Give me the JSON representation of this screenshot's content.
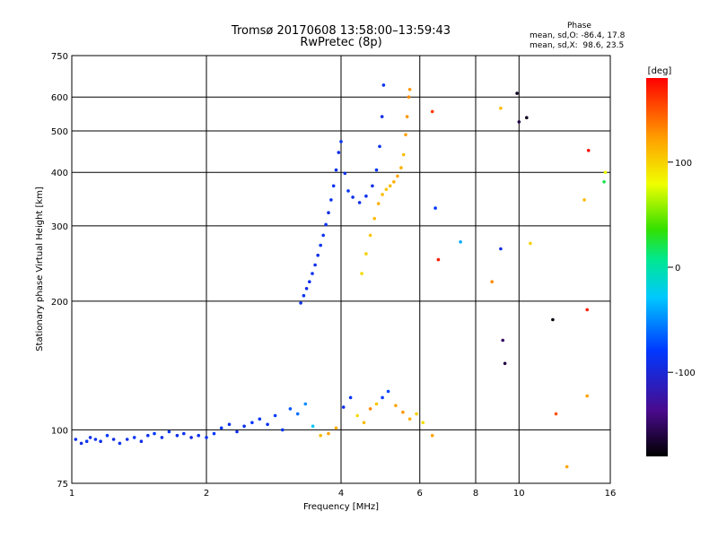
{
  "chart_data": {
    "type": "scatter",
    "title": "Tromsø 20170608 13:58:00–13:59:43",
    "subtitle": "RwPretec (8p)",
    "phase_title": "Phase",
    "phase_o": "mean, sd,O: -86.4, 17.8",
    "phase_x": "mean, sd,X:  98.6, 23.5",
    "xlabel": "Frequency [MHz]",
    "ylabel": "Stationary phase Virtual Height [km]",
    "xscale": "log",
    "yscale": "log",
    "xlim": [
      1,
      16
    ],
    "ylim": [
      75,
      750
    ],
    "xticks": [
      1,
      2,
      4,
      6,
      8,
      10,
      16
    ],
    "xtick_labels": [
      "1",
      "2",
      "4",
      "6",
      "8",
      "10",
      "16"
    ],
    "yticks": [
      75,
      100,
      200,
      300,
      400,
      500,
      600,
      750
    ],
    "ytick_labels": [
      "75",
      "100",
      "200",
      "300",
      "400",
      "500",
      "600",
      "750"
    ],
    "colorbar": {
      "label": "[deg]",
      "range": [
        -180,
        180
      ],
      "ticks": [
        -100,
        0,
        100
      ],
      "tick_labels": [
        "-100",
        "0",
        "100"
      ]
    },
    "grid": true,
    "series": [
      {
        "points": [
          [
            1.02,
            95,
            -90
          ],
          [
            1.05,
            93,
            -95
          ],
          [
            1.08,
            94,
            -88
          ],
          [
            1.1,
            96,
            -92
          ],
          [
            1.13,
            95,
            -85
          ],
          [
            1.16,
            94,
            -90
          ],
          [
            1.2,
            97,
            -80
          ],
          [
            1.24,
            95,
            -92
          ],
          [
            1.28,
            93,
            -88
          ],
          [
            1.33,
            95,
            -90
          ],
          [
            1.38,
            96,
            -85
          ],
          [
            1.43,
            94,
            -92
          ],
          [
            1.48,
            97,
            -88
          ],
          [
            1.53,
            98,
            -80
          ],
          [
            1.59,
            96,
            -90
          ],
          [
            1.65,
            99,
            -85
          ],
          [
            1.72,
            97,
            -92
          ],
          [
            1.78,
            98,
            -88
          ],
          [
            1.85,
            96,
            -95
          ],
          [
            1.92,
            97,
            -90
          ],
          [
            2.0,
            96,
            -88
          ],
          [
            2.08,
            98,
            -82
          ],
          [
            2.16,
            101,
            -85
          ],
          [
            2.25,
            103,
            -90
          ],
          [
            2.34,
            99,
            -95
          ],
          [
            2.43,
            102,
            -88
          ],
          [
            2.53,
            104,
            -80
          ],
          [
            2.63,
            106,
            -85
          ],
          [
            2.74,
            103,
            -90
          ],
          [
            2.85,
            108,
            -78
          ],
          [
            2.96,
            100,
            -85
          ],
          [
            3.08,
            112,
            -70
          ],
          [
            3.2,
            109,
            -60
          ],
          [
            3.33,
            115,
            -50
          ],
          [
            3.46,
            102,
            -30
          ],
          [
            3.6,
            97,
            110
          ],
          [
            3.75,
            98,
            120
          ],
          [
            3.9,
            101,
            115
          ],
          [
            4.05,
            113,
            -90
          ],
          [
            4.2,
            119,
            -85
          ],
          [
            4.35,
            108,
            95
          ],
          [
            4.5,
            104,
            110
          ],
          [
            4.65,
            112,
            130
          ],
          [
            4.8,
            115,
            105
          ],
          [
            4.95,
            119,
            -80
          ],
          [
            5.1,
            123,
            -75
          ],
          [
            5.3,
            114,
            120
          ],
          [
            5.5,
            110,
            125
          ],
          [
            5.7,
            106,
            115
          ],
          [
            5.9,
            109,
            100
          ],
          [
            6.1,
            104,
            95
          ],
          [
            6.4,
            97,
            120
          ]
        ]
      },
      {
        "points": [
          [
            3.25,
            198,
            -90
          ],
          [
            3.3,
            206,
            -85
          ],
          [
            3.35,
            214,
            -95
          ],
          [
            3.4,
            222,
            -90
          ],
          [
            3.45,
            232,
            -88
          ],
          [
            3.5,
            243,
            -92
          ],
          [
            3.55,
            256,
            -90
          ],
          [
            3.6,
            270,
            -85
          ],
          [
            3.65,
            285,
            -90
          ],
          [
            3.7,
            302,
            -88
          ],
          [
            3.75,
            322,
            -92
          ],
          [
            3.8,
            345,
            -90
          ],
          [
            3.85,
            372,
            -85
          ],
          [
            3.9,
            405,
            -90
          ],
          [
            3.95,
            445,
            -92
          ],
          [
            4.0,
            472,
            -88
          ],
          [
            4.08,
            398,
            -90
          ],
          [
            4.15,
            362,
            -85
          ],
          [
            4.25,
            350,
            -90
          ],
          [
            4.4,
            340,
            -92
          ],
          [
            4.55,
            352,
            -88
          ],
          [
            4.7,
            372,
            -90
          ],
          [
            4.8,
            405,
            -85
          ],
          [
            4.88,
            460,
            -90
          ],
          [
            4.94,
            540,
            -92
          ],
          [
            4.98,
            640,
            -88
          ]
        ]
      },
      {
        "points": [
          [
            4.45,
            232,
            95
          ],
          [
            4.55,
            258,
            100
          ],
          [
            4.65,
            285,
            105
          ],
          [
            4.75,
            312,
            110
          ],
          [
            4.85,
            338,
            115
          ],
          [
            4.95,
            355,
            110
          ],
          [
            5.05,
            365,
            105
          ],
          [
            5.15,
            372,
            110
          ],
          [
            5.25,
            380,
            115
          ],
          [
            5.35,
            392,
            120
          ],
          [
            5.45,
            410,
            115
          ],
          [
            5.52,
            440,
            110
          ],
          [
            5.58,
            490,
            120
          ],
          [
            5.62,
            540,
            125
          ],
          [
            5.67,
            600,
            130
          ],
          [
            5.7,
            625,
            125
          ]
        ]
      },
      {
        "points": [
          [
            6.4,
            555,
            160
          ],
          [
            6.5,
            330,
            -80
          ],
          [
            6.6,
            250,
            170
          ],
          [
            7.4,
            275,
            -40
          ],
          [
            8.7,
            222,
            130
          ],
          [
            9.1,
            565,
            110
          ],
          [
            9.1,
            265,
            -95
          ],
          [
            9.2,
            162,
            -150
          ],
          [
            9.3,
            143,
            -160
          ],
          [
            9.9,
            612,
            -170
          ],
          [
            10.0,
            525,
            -160
          ],
          [
            10.4,
            537,
            -170
          ],
          [
            10.6,
            273,
            100
          ],
          [
            11.9,
            181,
            -175
          ],
          [
            12.1,
            109,
            150
          ],
          [
            12.8,
            82,
            120
          ],
          [
            14.0,
            345,
            110
          ],
          [
            14.2,
            191,
            170
          ],
          [
            14.3,
            450,
            175
          ],
          [
            14.2,
            120,
            120
          ],
          [
            15.5,
            380,
            20
          ],
          [
            15.6,
            400,
            80
          ]
        ]
      }
    ]
  }
}
